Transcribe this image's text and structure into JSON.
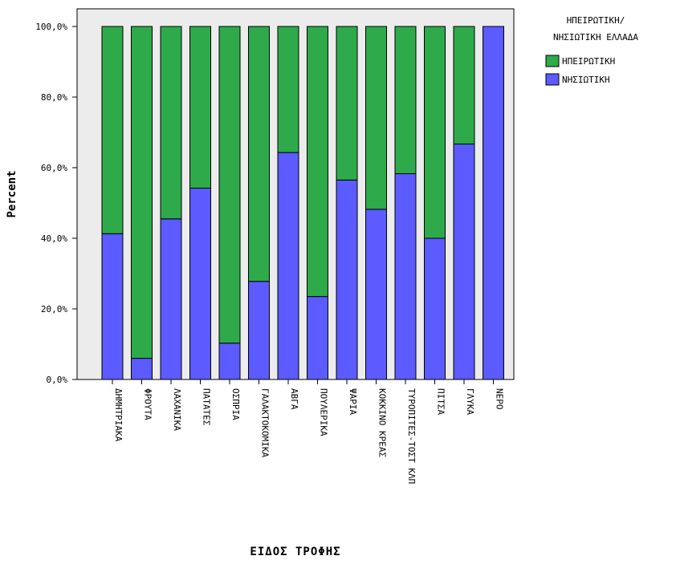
{
  "chart_data": {
    "type": "bar",
    "stacked": true,
    "categories": [
      "ΔΗΜΗΤΡΙΑΚΑ",
      "ΦΡΟΥΤΑ",
      "ΛΑΧΑΝΙΚΑ",
      "ΠΑΤΑΤΕΣ",
      "ΟΣΠΡΙΑ",
      "ΓΑΛΑΚΤΟΚΟΜΙΚΑ",
      "ΑΒΓΑ",
      "ΠΟΥΛΕΡΙΚΑ",
      "ΨΑΡΙΑ",
      "ΚΟΚΚΙΝΟ ΚΡΕΑΣ",
      "ΤΥΡΟΠΙΤΕΣ-ΤΟΣΤ ΚΛΠ",
      "ΠΙΤΣΑ",
      "ΓΛΥΚΑ",
      "ΝΕΡΟ"
    ],
    "series": [
      {
        "name": "ΝΗΣΙΩΤΙΚΗ",
        "color": "#5b5bff",
        "values": [
          41.3,
          6.0,
          45.5,
          54.2,
          10.3,
          27.8,
          64.3,
          23.5,
          56.5,
          48.2,
          58.3,
          40.0,
          66.7,
          100.0
        ]
      },
      {
        "name": "ΗΠΕΙΡΩΤΙΚΗ",
        "color": "#2eaa4a",
        "values": [
          58.7,
          94.0,
          54.5,
          45.8,
          89.7,
          72.2,
          35.7,
          76.5,
          43.5,
          51.8,
          41.7,
          60.0,
          33.3,
          0.0
        ]
      }
    ],
    "xlabel": "ΕΙΔΟΣ ΤΡΟΦΗΣ",
    "ylabel": "Percent",
    "ylim": [
      0,
      100
    ],
    "yticks": [
      "0,0%",
      "20,0%",
      "40,0%",
      "60,0%",
      "80,0%",
      "100,0%"
    ],
    "legend": {
      "title_lines": [
        "ΗΠΕΙΡΩΤΙΚΗ/",
        "ΝΗΣΙΩΤΙΚΗ ΕΛΛΑΔΑ"
      ],
      "items": [
        {
          "label": "ΗΠΕΙΡΩΤΙΚΗ",
          "color": "#2eaa4a"
        },
        {
          "label": "ΝΗΣΙΩΤΙΚΗ",
          "color": "#5b5bff"
        }
      ],
      "position": "right"
    },
    "plot_background": "#ececec",
    "grid": false
  }
}
